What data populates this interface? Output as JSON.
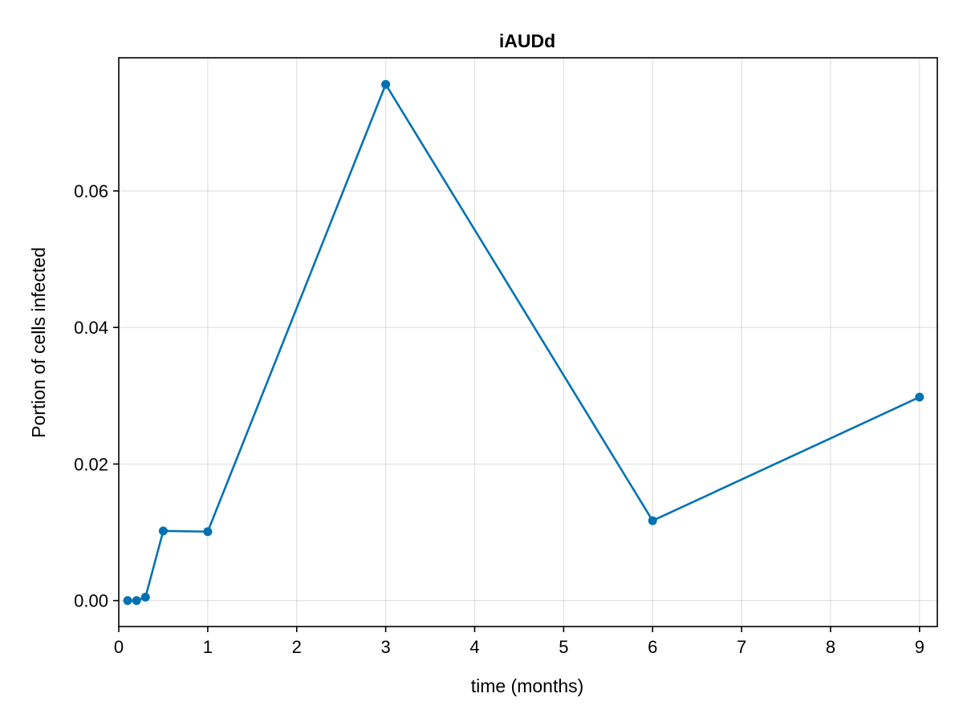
{
  "chart_data": {
    "type": "line",
    "title": "iAUDd",
    "xlabel": "time (months)",
    "ylabel": "Portion of cells infected",
    "xlim": [
      0,
      9.2
    ],
    "ylim": [
      -0.0038,
      0.0795
    ],
    "xticks": [
      0,
      1,
      2,
      3,
      4,
      5,
      6,
      7,
      8,
      9
    ],
    "xtick_labels": [
      "0",
      "1",
      "2",
      "3",
      "4",
      "5",
      "6",
      "7",
      "8",
      "9"
    ],
    "yticks": [
      0.0,
      0.02,
      0.04,
      0.06
    ],
    "ytick_labels": [
      "0.00",
      "0.02",
      "0.04",
      "0.06"
    ],
    "grid": true,
    "series": [
      {
        "x": [
          0.1,
          0.2,
          0.3,
          0.5,
          1,
          3,
          6,
          9
        ],
        "y": [
          0.0,
          0.0,
          0.0005,
          0.0102,
          0.0101,
          0.0756,
          0.0117,
          0.0298
        ],
        "color": "#0072b2",
        "markers": true
      }
    ]
  }
}
